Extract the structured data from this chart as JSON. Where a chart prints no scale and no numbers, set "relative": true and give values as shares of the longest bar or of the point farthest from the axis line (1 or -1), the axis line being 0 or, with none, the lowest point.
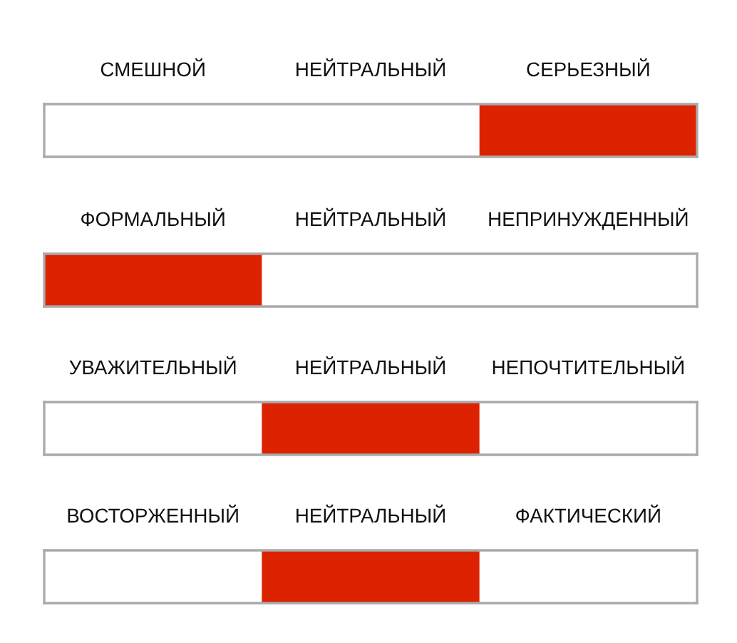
{
  "chart_data": [
    {
      "type": "bar",
      "relative": true,
      "categories": [
        "СМЕШНОЙ",
        "НЕЙТРАЛЬНЫЙ",
        "СЕРЬЕЗНЫЙ"
      ],
      "values": [
        0,
        0,
        1
      ],
      "color": "#dd2200"
    },
    {
      "type": "bar",
      "relative": true,
      "categories": [
        "ФОРМАЛЬНЫЙ",
        "НЕЙТРАЛЬНЫЙ",
        "НЕПРИНУЖДЕННЫЙ"
      ],
      "values": [
        1,
        0,
        0
      ],
      "color": "#dd2200"
    },
    {
      "type": "bar",
      "relative": true,
      "categories": [
        "УВАЖИТЕЛЬНЫЙ",
        "НЕЙТРАЛЬНЫЙ",
        "НЕПОЧТИТЕЛЬНЫЙ"
      ],
      "values": [
        0,
        1,
        0
      ],
      "color": "#dd2200"
    },
    {
      "type": "bar",
      "relative": true,
      "categories": [
        "ВОСТОРЖЕННЫЙ",
        "НЕЙТРАЛЬНЫЙ",
        "ФАКТИЧЕСКИЙ"
      ],
      "values": [
        0,
        1,
        0
      ],
      "color": "#dd2200"
    }
  ]
}
